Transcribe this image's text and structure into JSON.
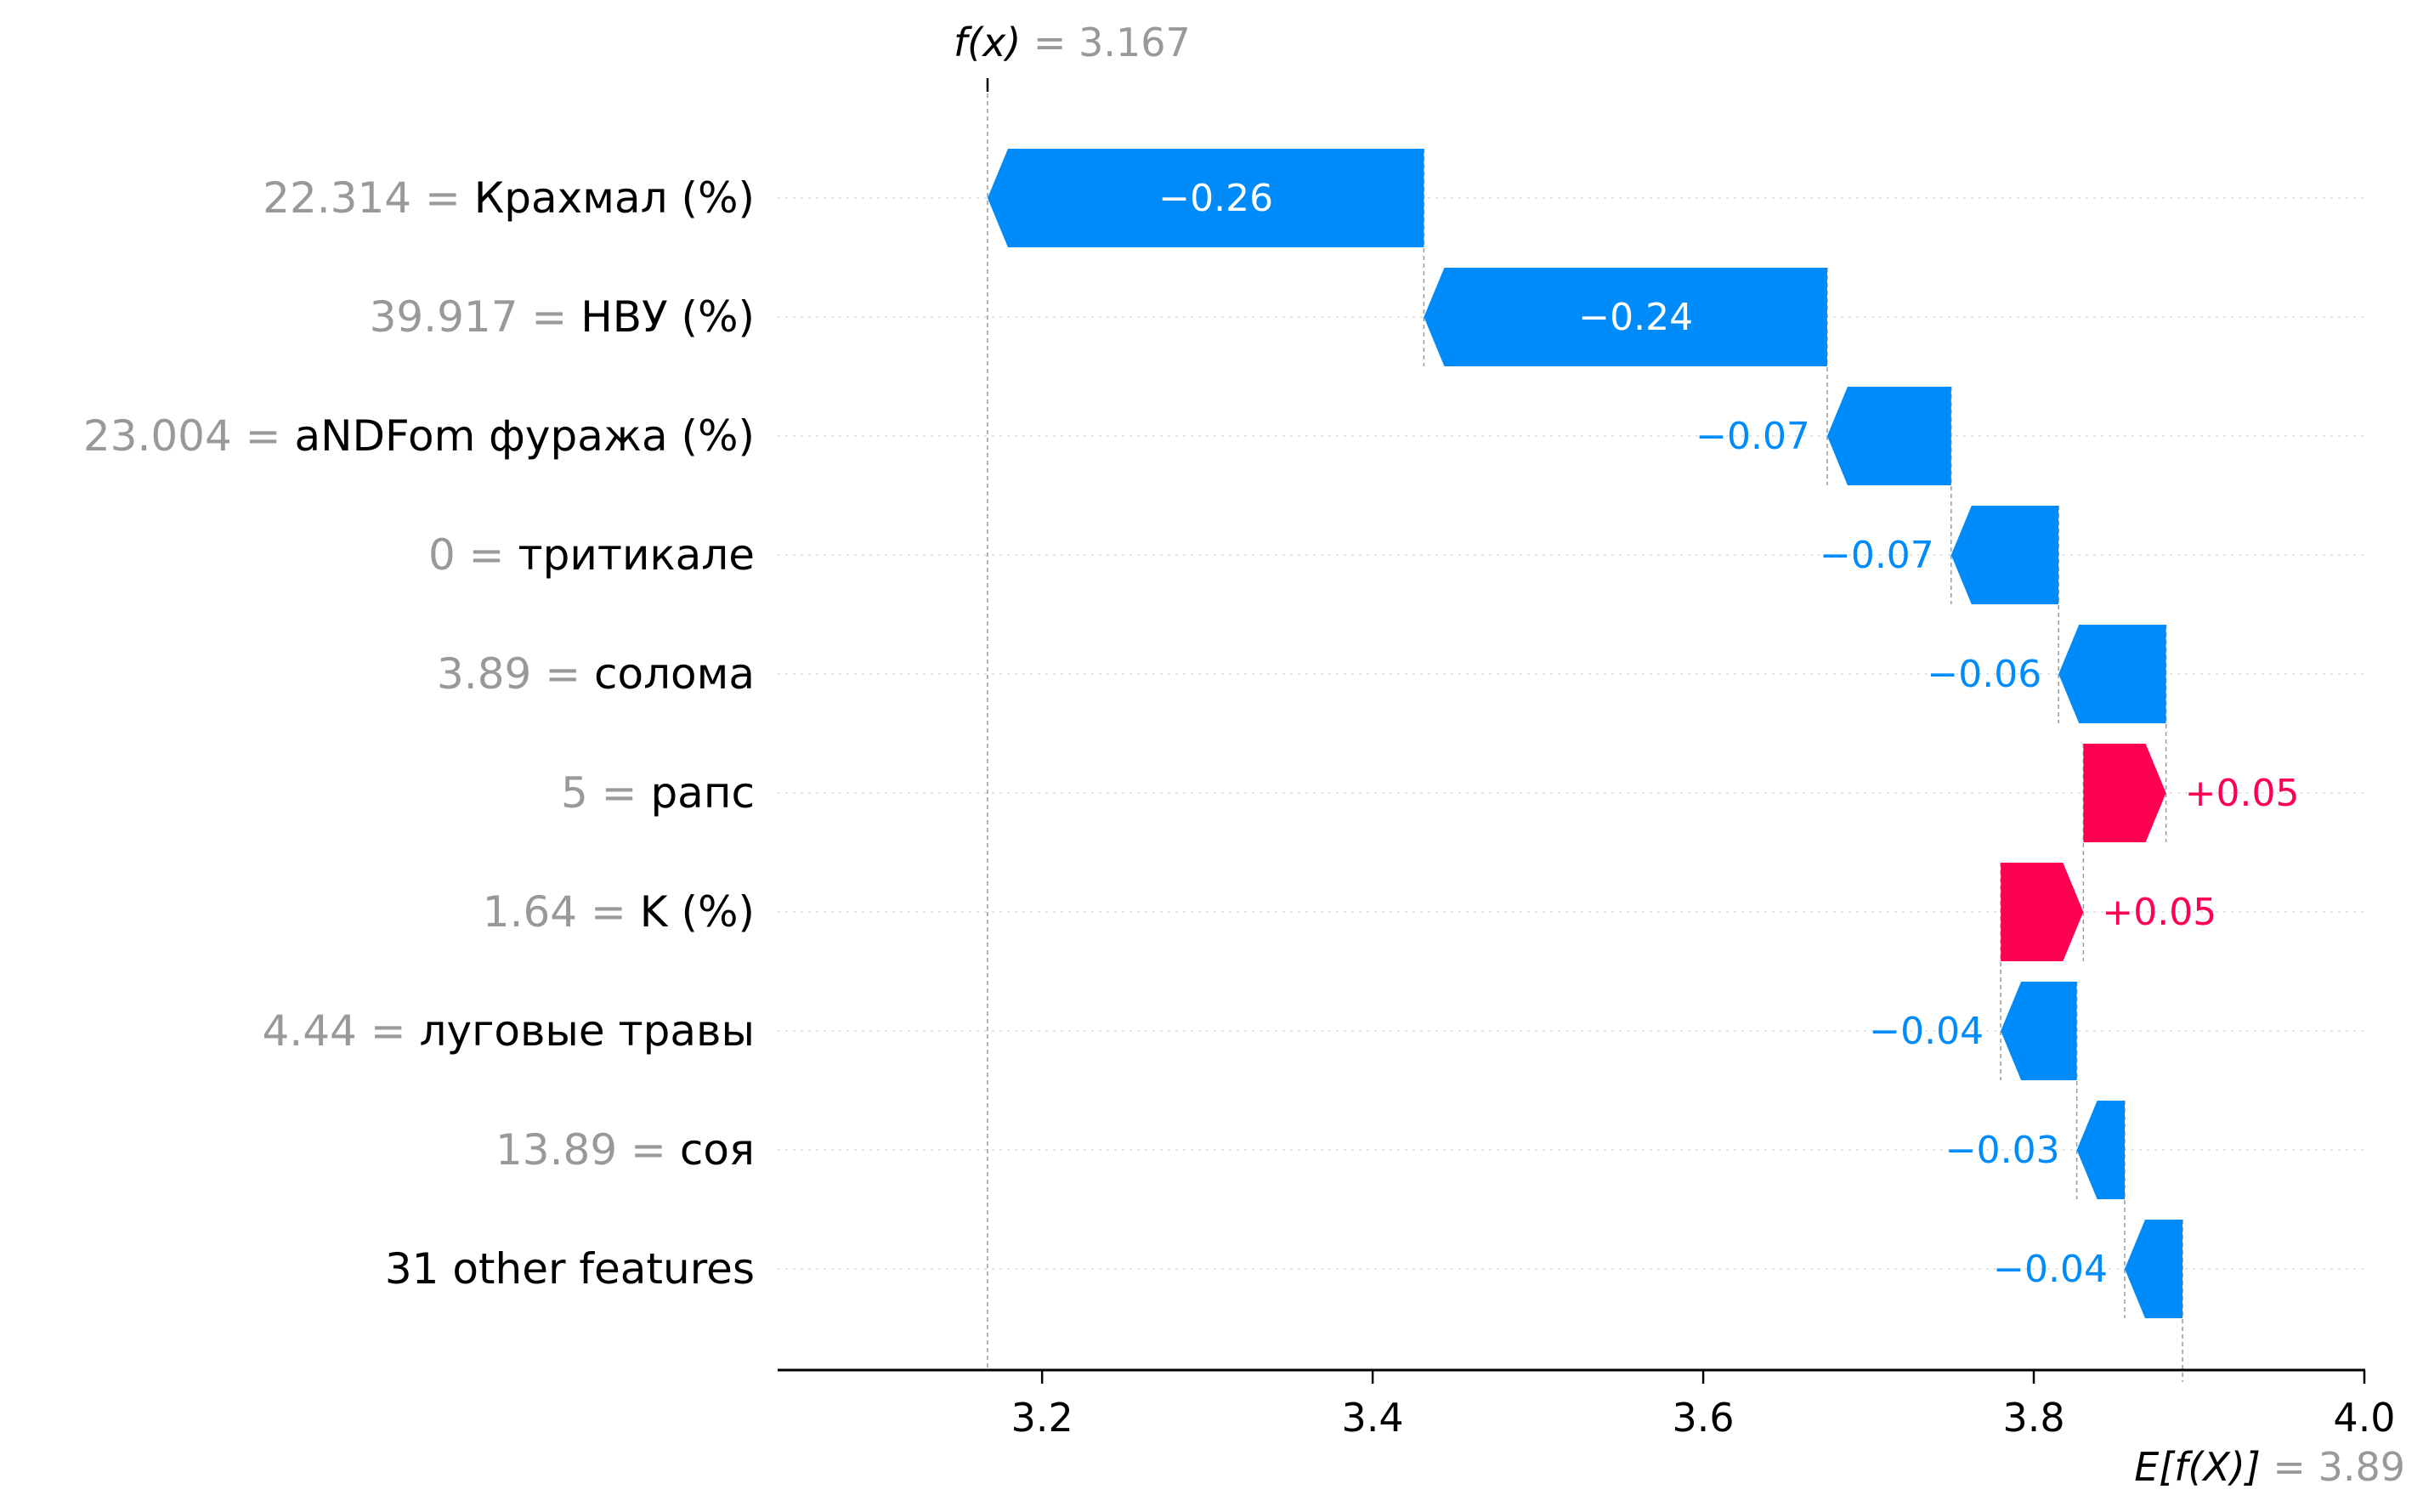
{
  "chart_data": {
    "type": "waterfall",
    "fx_label": "f(x)",
    "fx_value_text": "= 3.167",
    "fx": 3.167,
    "efx_label": "E[f(X)]",
    "efx_value_text": "= 3.89",
    "efx": 3.89,
    "x_axis": {
      "range": [
        3.04,
        4.0
      ],
      "ticks": [
        3.2,
        3.4,
        3.6,
        3.8,
        4.0
      ],
      "tick_labels": [
        "3.2",
        "3.4",
        "3.6",
        "3.8",
        "4.0"
      ]
    },
    "features": [
      {
        "value": "22.314",
        "name": "Крахмал (%)",
        "start": 3.431,
        "end": 3.167,
        "label": "−0.26",
        "sign": "neg"
      },
      {
        "value": "39.917",
        "name": "НВУ (%)",
        "start": 3.675,
        "end": 3.431,
        "label": "−0.24",
        "sign": "neg"
      },
      {
        "value": "23.004",
        "name": "aNDFom фуража (%)",
        "start": 3.75,
        "end": 3.675,
        "label": "−0.07",
        "sign": "neg"
      },
      {
        "value": "0",
        "name": "тритикале",
        "start": 3.815,
        "end": 3.75,
        "label": "−0.07",
        "sign": "neg"
      },
      {
        "value": "3.89",
        "name": "солома",
        "start": 3.88,
        "end": 3.815,
        "label": "−0.06",
        "sign": "neg"
      },
      {
        "value": "5",
        "name": "рапс",
        "start": 3.83,
        "end": 3.88,
        "label": "+0.05",
        "sign": "pos"
      },
      {
        "value": "1.64",
        "name": "K (%)",
        "start": 3.78,
        "end": 3.83,
        "label": "+0.05",
        "sign": "pos"
      },
      {
        "value": "4.44",
        "name": "луговые травы",
        "start": 3.826,
        "end": 3.78,
        "label": "−0.04",
        "sign": "neg"
      },
      {
        "value": "13.89",
        "name": "соя",
        "start": 3.855,
        "end": 3.826,
        "label": "−0.03",
        "sign": "neg"
      },
      {
        "value": "",
        "name": "31 other features",
        "start": 3.89,
        "end": 3.855,
        "label": "−0.04",
        "sign": "neg"
      }
    ],
    "colors": {
      "negative": "#008bfb",
      "positive": "#ff0051",
      "feature_value": "#999999",
      "feature_name": "#000000",
      "axis": "#000000",
      "grid": "#cccccc"
    },
    "grid": true
  }
}
